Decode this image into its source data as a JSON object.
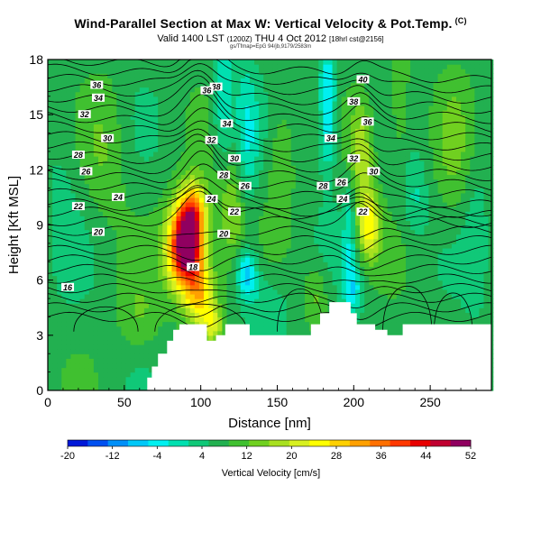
{
  "chart_data": {
    "type": "heatmap",
    "title": "Wind-Parallel Section at Max W: Vertical Velocity & Pot.Temp.",
    "title_mark": "(C)",
    "subtitle_main": "Valid 1400 LST",
    "subtitle_utc": "(1200Z)",
    "subtitle_date": "THU 4 Oct 2012",
    "subtitle_run": "[18hrl cst@2156]",
    "subtitle_small": "gs/Tfmap=EpG 94/jb,9179/2583m",
    "xlabel": "Distance [nm]",
    "ylabel": "Height [Kft MSL]",
    "xlim": [
      0,
      290
    ],
    "ylim": [
      0,
      18
    ],
    "x_ticks": [
      0,
      50,
      100,
      150,
      200,
      250
    ],
    "y_ticks": [
      0,
      3,
      6,
      9,
      12,
      15,
      18
    ],
    "colorbar": {
      "label": "Vertical Velocity [cm/s]",
      "ticks": [
        -20,
        -12,
        -4,
        4,
        12,
        20,
        28,
        36,
        44,
        52
      ],
      "colors": [
        "#0018d8",
        "#0050f0",
        "#0090f8",
        "#00c8f8",
        "#00f0f0",
        "#00e0b0",
        "#10c878",
        "#22b050",
        "#40c030",
        "#70d020",
        "#a8e020",
        "#d8f020",
        "#ffff00",
        "#ffd000",
        "#ffa000",
        "#ff7000",
        "#ff3800",
        "#e80000",
        "#c00030",
        "#900060"
      ]
    },
    "terrain": [
      {
        "x": 0,
        "h": 0
      },
      {
        "x": 65,
        "h": 0
      },
      {
        "x": 65,
        "h": 0.7
      },
      {
        "x": 68,
        "h": 0.7
      },
      {
        "x": 68,
        "h": 1.3
      },
      {
        "x": 72,
        "h": 1.3
      },
      {
        "x": 72,
        "h": 2.0
      },
      {
        "x": 78,
        "h": 2.0
      },
      {
        "x": 78,
        "h": 2.7
      },
      {
        "x": 82,
        "h": 2.7
      },
      {
        "x": 82,
        "h": 3.3
      },
      {
        "x": 86,
        "h": 3.3
      },
      {
        "x": 86,
        "h": 3.6
      },
      {
        "x": 104,
        "h": 3.6
      },
      {
        "x": 104,
        "h": 2.7
      },
      {
        "x": 110,
        "h": 2.7
      },
      {
        "x": 110,
        "h": 3.0
      },
      {
        "x": 116,
        "h": 3.0
      },
      {
        "x": 116,
        "h": 3.6
      },
      {
        "x": 132,
        "h": 3.6
      },
      {
        "x": 132,
        "h": 3.0
      },
      {
        "x": 172,
        "h": 3.0
      },
      {
        "x": 172,
        "h": 3.6
      },
      {
        "x": 178,
        "h": 3.6
      },
      {
        "x": 178,
        "h": 4.2
      },
      {
        "x": 184,
        "h": 4.2
      },
      {
        "x": 184,
        "h": 4.8
      },
      {
        "x": 198,
        "h": 4.8
      },
      {
        "x": 198,
        "h": 4.2
      },
      {
        "x": 202,
        "h": 4.2
      },
      {
        "x": 202,
        "h": 3.6
      },
      {
        "x": 214,
        "h": 3.6
      },
      {
        "x": 214,
        "h": 3.3
      },
      {
        "x": 222,
        "h": 3.3
      },
      {
        "x": 222,
        "h": 3.0
      },
      {
        "x": 232,
        "h": 3.0
      },
      {
        "x": 232,
        "h": 3.6
      },
      {
        "x": 290,
        "h": 3.6
      },
      {
        "x": 290,
        "h": 0
      }
    ],
    "w_features": [
      {
        "x": 90,
        "h": 7.8,
        "sx": 8,
        "sy": 1.6,
        "w": 48
      },
      {
        "x": 95,
        "h": 9.6,
        "sx": 6,
        "sy": 1.3,
        "w": 22
      },
      {
        "x": 100,
        "h": 5.2,
        "sx": 7,
        "sy": 1.2,
        "w": 20
      },
      {
        "x": 108,
        "h": 3.6,
        "sx": 5,
        "sy": 0.7,
        "w": 12
      },
      {
        "x": 120,
        "h": 10.0,
        "sx": 8,
        "sy": 2.5,
        "w": 10
      },
      {
        "x": 38,
        "h": 13.0,
        "sx": 10,
        "sy": 2.8,
        "w": 5
      },
      {
        "x": 115,
        "h": 15.5,
        "sx": 5,
        "sy": 3.0,
        "w": -10
      },
      {
        "x": 130,
        "h": 13.5,
        "sx": 5,
        "sy": 3.0,
        "w": -10
      },
      {
        "x": 130,
        "h": 6.4,
        "sx": 5,
        "sy": 1.0,
        "w": -15
      },
      {
        "x": 183,
        "h": 15.5,
        "sx": 4,
        "sy": 2.6,
        "w": -15
      },
      {
        "x": 197,
        "h": 8.5,
        "sx": 3,
        "sy": 2.5,
        "w": -8
      },
      {
        "x": 200,
        "h": 5.5,
        "sx": 4,
        "sy": 1.0,
        "w": -10
      },
      {
        "x": 210,
        "h": 9.0,
        "sx": 5,
        "sy": 1.3,
        "w": 18
      },
      {
        "x": 205,
        "h": 13.0,
        "sx": 6,
        "sy": 2.0,
        "w": 12
      },
      {
        "x": 175,
        "h": 5.2,
        "sx": 6,
        "sy": 1.2,
        "w": 7
      },
      {
        "x": 143,
        "h": 4.5,
        "sx": 10,
        "sy": 1.5,
        "w": -6
      },
      {
        "x": 240,
        "h": 10.5,
        "sx": 6,
        "sy": 1.5,
        "w": -6
      },
      {
        "x": 265,
        "h": 13.0,
        "sx": 8,
        "sy": 3.0,
        "w": 5
      },
      {
        "x": 60,
        "h": 4.0,
        "sx": 10,
        "sy": 1.5,
        "w": 5
      },
      {
        "x": 10,
        "h": 12.0,
        "sx": 8,
        "sy": 4.0,
        "w": -3
      },
      {
        "x": 152,
        "h": 12.5,
        "sx": 6,
        "sy": 2.5,
        "w": 6
      },
      {
        "x": 230,
        "h": 15.5,
        "sx": 5,
        "sy": 2.5,
        "w": 6
      },
      {
        "x": 280,
        "h": 8.0,
        "sx": 6,
        "sy": 3.0,
        "w": -4
      }
    ],
    "isentrope_labels": [
      {
        "value": "36",
        "x": 32,
        "h": 16.6
      },
      {
        "value": "34",
        "x": 33,
        "h": 15.9
      },
      {
        "value": "32",
        "x": 24,
        "h": 15.0
      },
      {
        "value": "30",
        "x": 39,
        "h": 13.7
      },
      {
        "value": "28",
        "x": 20,
        "h": 12.8
      },
      {
        "value": "26",
        "x": 25,
        "h": 11.9
      },
      {
        "value": "24",
        "x": 46,
        "h": 10.5
      },
      {
        "value": "22",
        "x": 20,
        "h": 10.0
      },
      {
        "value": "20",
        "x": 33,
        "h": 8.6
      },
      {
        "value": "16",
        "x": 13,
        "h": 5.6
      },
      {
        "value": "38",
        "x": 110,
        "h": 16.5
      },
      {
        "value": "36",
        "x": 104,
        "h": 16.3
      },
      {
        "value": "34",
        "x": 117,
        "h": 14.5
      },
      {
        "value": "32",
        "x": 107,
        "h": 13.6
      },
      {
        "value": "30",
        "x": 122,
        "h": 12.6
      },
      {
        "value": "28",
        "x": 115,
        "h": 11.7
      },
      {
        "value": "26",
        "x": 129,
        "h": 11.1
      },
      {
        "value": "24",
        "x": 107,
        "h": 10.4
      },
      {
        "value": "22",
        "x": 122,
        "h": 9.7
      },
      {
        "value": "20",
        "x": 115,
        "h": 8.5
      },
      {
        "value": "18",
        "x": 95,
        "h": 6.7
      },
      {
        "value": "40",
        "x": 206,
        "h": 16.9
      },
      {
        "value": "38",
        "x": 200,
        "h": 15.7
      },
      {
        "value": "36",
        "x": 209,
        "h": 14.6
      },
      {
        "value": "34",
        "x": 185,
        "h": 13.7
      },
      {
        "value": "32",
        "x": 200,
        "h": 12.6
      },
      {
        "value": "30",
        "x": 213,
        "h": 11.9
      },
      {
        "value": "28",
        "x": 180,
        "h": 11.1
      },
      {
        "value": "26",
        "x": 192,
        "h": 11.3
      },
      {
        "value": "24",
        "x": 193,
        "h": 10.4
      },
      {
        "value": "22",
        "x": 206,
        "h": 9.7
      }
    ]
  }
}
